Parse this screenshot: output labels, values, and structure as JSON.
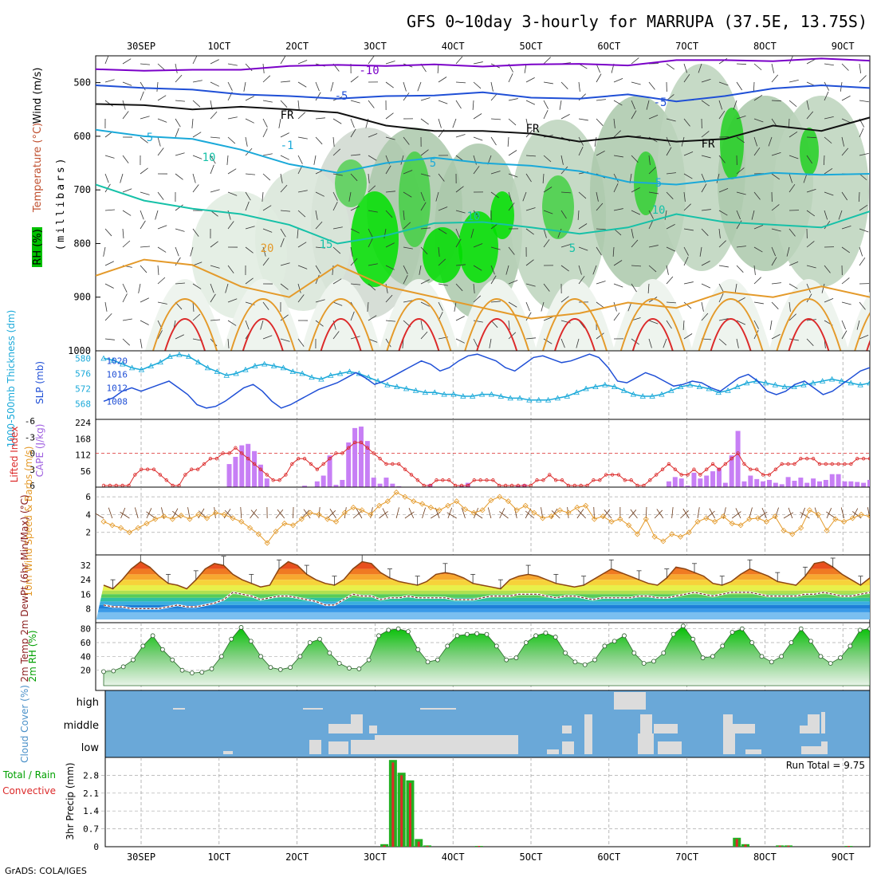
{
  "header": {
    "title": "GFS 0~10day 3-hourly for MARRUPA (37.5E, 13.75S)",
    "footer": "GrADS: COLA/IGES"
  },
  "dates": [
    "30SEP",
    "1OCT",
    "2OCT",
    "3OCT",
    "4OCT",
    "5OCT",
    "6OCT",
    "7OCT",
    "8OCT",
    "9OCT"
  ],
  "legend_colors": {
    "purple": "#7a00c8",
    "blue": "#1f4fd6",
    "cyan": "#1aa9d9",
    "teal": "#16c1a8",
    "orange": "#e49a2a",
    "red": "#dc2a2a",
    "magenta": "#d4007a",
    "green": "#00d000",
    "sky": "#6aa8d8"
  },
  "chart_data": [
    {
      "type": "heatmap",
      "panel": "upper-air",
      "ylabel": "(millibars)",
      "side_labels": [
        "Wind (m/s)",
        "Temperature (°C)",
        "RH (%)"
      ],
      "yticks": [
        500,
        600,
        700,
        800,
        900,
        1000
      ],
      "ylim": [
        1000,
        450
      ],
      "contour_labels": [
        "-10",
        "-5",
        "-5",
        "FR",
        "FR",
        "FR",
        "5",
        "-1",
        "10",
        "5",
        "5",
        "10",
        "10",
        "15",
        "20",
        "5"
      ],
      "isotherms": [
        {
          "name": "-10",
          "color": "purple",
          "y": [
            475,
            478,
            476,
            476,
            469,
            467,
            469,
            466,
            470,
            466,
            465,
            468,
            458,
            458,
            460,
            455,
            459
          ]
        },
        {
          "name": "-5",
          "color": "blue",
          "y": [
            505,
            510,
            513,
            522,
            525,
            530,
            525,
            524,
            518,
            528,
            530,
            522,
            535,
            525,
            511,
            505,
            510
          ]
        },
        {
          "name": "FR",
          "color": "#111111",
          "y": [
            540,
            542,
            550,
            545,
            550,
            556,
            580,
            590,
            590,
            595,
            610,
            600,
            610,
            605,
            580,
            590,
            565
          ]
        },
        {
          "name": "5",
          "color": "cyan",
          "y": [
            588,
            600,
            605,
            625,
            652,
            668,
            650,
            640,
            650,
            655,
            665,
            685,
            690,
            680,
            668,
            672,
            670
          ]
        },
        {
          "name": "10",
          "color": "teal",
          "y": [
            690,
            720,
            735,
            745,
            765,
            800,
            785,
            762,
            760,
            770,
            782,
            770,
            745,
            760,
            765,
            770,
            740
          ]
        },
        {
          "name": "20",
          "color": "orange",
          "y": [
            860,
            830,
            840,
            880,
            900,
            840,
            880,
            900,
            920,
            940,
            930,
            910,
            920,
            890,
            900,
            880,
            900
          ]
        }
      ]
    },
    {
      "type": "line",
      "panel": "thickness-slp",
      "ylabel_left": "1000-500mb Thickness (dm)",
      "ylabel_right": "SLP (mb)",
      "left_ticks": [
        568,
        572,
        576,
        580
      ],
      "right_ticks": [
        1008,
        1012,
        1016,
        1020
      ],
      "series": [
        {
          "name": "1000-500mb Thickness (dm)",
          "color": "cyan",
          "values": [
            580,
            579.5,
            578.5,
            577.5,
            577,
            578,
            579,
            580.5,
            581,
            580.5,
            579,
            577.5,
            576.5,
            575.5,
            576,
            577,
            578,
            578.5,
            578,
            577.5,
            576.5,
            576,
            575,
            574.5,
            575.5,
            576,
            576.5,
            576,
            575,
            574,
            573,
            572.5,
            572,
            571.5,
            571,
            571,
            570.5,
            570.5,
            570,
            570,
            570.5,
            570.5,
            570,
            569.5,
            569.5,
            569,
            569,
            569,
            569.5,
            570,
            571,
            572,
            572.5,
            573,
            572.5,
            571.5,
            570.5,
            570,
            570,
            570.5,
            571.5,
            572.5,
            573,
            572.5,
            572,
            571,
            571.5,
            572.5,
            573.5,
            574,
            573.5,
            573,
            572.5,
            572.5,
            573,
            573.5,
            574,
            574.5,
            574,
            573.5,
            573,
            573.5
          ]
        },
        {
          "name": "SLP (mb)",
          "color": "blue",
          "values": [
            1008,
            1009,
            1011,
            1012,
            1011,
            1012,
            1013,
            1014,
            1012,
            1010,
            1007,
            1006,
            1006.5,
            1008,
            1010,
            1012,
            1013,
            1011,
            1008,
            1006,
            1007,
            1008.5,
            1010,
            1011.5,
            1012.5,
            1013.5,
            1015,
            1016.5,
            1015,
            1013,
            1014,
            1015.5,
            1017,
            1018.5,
            1020,
            1019,
            1017,
            1018,
            1020,
            1021.5,
            1022,
            1021,
            1020,
            1018,
            1017,
            1019,
            1021,
            1021.5,
            1020.5,
            1019.5,
            1020,
            1021,
            1022,
            1021,
            1018,
            1014,
            1013.5,
            1015,
            1016.5,
            1015.5,
            1014,
            1012.5,
            1013,
            1014,
            1013.5,
            1012,
            1011,
            1013,
            1015,
            1016,
            1014,
            1011,
            1010,
            1011,
            1013,
            1014,
            1012,
            1010,
            1011,
            1013,
            1015,
            1017,
            1018
          ]
        }
      ]
    },
    {
      "type": "bar",
      "panel": "cape-li",
      "ylabel_left": "Lifted Index",
      "ylabel_right": "CAPE (J/kg)",
      "left_ticks": [
        -6,
        -3,
        0,
        3,
        6
      ],
      "right_ticks": [
        56,
        112,
        168,
        224
      ],
      "cape_color": "#c77ff5",
      "li_color": "red",
      "cape": [
        0,
        0,
        0,
        0,
        0,
        0,
        0,
        0,
        0,
        0,
        0,
        0,
        0,
        0,
        0,
        0,
        0,
        0,
        0,
        0,
        80,
        105,
        145,
        150,
        125,
        78,
        30,
        0,
        0,
        0,
        0,
        0,
        5,
        0,
        20,
        40,
        110,
        8,
        25,
        155,
        205,
        210,
        160,
        33,
        12,
        33,
        12,
        3,
        0,
        0,
        0,
        0,
        10,
        0,
        0,
        0,
        0,
        5,
        15,
        0,
        0,
        0,
        0,
        0,
        0,
        0,
        5,
        10,
        0,
        0,
        0,
        0,
        0,
        0,
        0,
        0,
        0,
        0,
        0,
        0,
        0,
        0,
        0,
        0,
        0,
        0,
        0,
        0,
        0,
        0,
        20,
        35,
        30,
        5,
        50,
        30,
        40,
        55,
        65,
        15,
        110,
        195,
        20,
        40,
        28,
        20,
        25,
        15,
        10,
        35,
        22,
        33,
        15,
        30,
        20,
        25,
        45,
        45,
        20,
        20,
        18,
        15,
        25
      ],
      "lifted_index": [
        6,
        6,
        6,
        6,
        6,
        4,
        3,
        3,
        3,
        4,
        5,
        6,
        6,
        4,
        3,
        3,
        2,
        1,
        1,
        0,
        0,
        -1,
        0,
        1,
        2,
        3,
        4,
        5,
        5,
        4,
        2,
        1,
        1,
        2,
        3,
        2,
        1,
        0,
        0,
        -1,
        -2,
        -2,
        -1,
        0,
        1,
        2,
        2,
        2,
        3,
        4,
        5,
        6,
        6,
        5,
        5,
        5,
        6,
        6,
        6,
        5,
        5,
        5,
        5,
        6,
        6,
        6,
        6,
        6,
        6,
        5,
        5,
        4,
        5,
        5,
        6,
        6,
        6,
        6,
        5,
        5,
        4,
        4,
        4,
        5,
        5,
        6,
        6,
        5,
        4,
        3,
        2,
        3,
        4,
        4,
        3,
        4,
        3,
        2,
        3,
        2,
        1,
        0,
        2,
        3,
        3,
        4,
        4,
        3,
        2,
        2,
        2,
        1,
        1,
        1,
        2,
        2,
        2,
        2,
        2,
        2,
        1,
        1,
        1
      ]
    },
    {
      "type": "line",
      "panel": "wind10m",
      "ylabel": "10m Wind Speed & Barbs (m/s)",
      "yticks": [
        2,
        4,
        6
      ],
      "series": [
        {
          "name": "Speed",
          "color": "orange",
          "values": [
            3.2,
            2.8,
            2.5,
            2.0,
            2.5,
            3.0,
            3.5,
            3.8,
            3.5,
            3.9,
            3.5,
            4.0,
            3.6,
            4.2,
            4.0,
            3.6,
            3.2,
            2.5,
            1.8,
            0.8,
            2.1,
            3.0,
            2.8,
            3.5,
            4.2,
            4.0,
            3.5,
            3.2,
            4.2,
            4.8,
            4.5,
            4.0,
            5.0,
            5.5,
            6.5,
            6.0,
            5.5,
            5.2,
            4.8,
            4.5,
            5.0,
            5.5,
            4.6,
            4.2,
            4.5,
            5.6,
            6.0,
            5.5,
            4.5,
            5.0,
            4.2,
            3.6,
            3.8,
            4.5,
            4.2,
            4.8,
            5.0,
            3.5,
            3.8,
            3.2,
            3.5,
            2.8,
            1.8,
            3.5,
            1.5,
            1.0,
            1.8,
            1.5,
            2.0,
            3.2,
            3.6,
            3.2,
            3.8,
            3.0,
            2.8,
            3.5,
            3.6,
            3.2,
            3.8,
            2.2,
            1.8,
            2.5,
            4.5,
            4.0,
            2.2,
            3.5,
            3.2,
            3.6,
            4.0,
            3.8
          ]
        }
      ]
    },
    {
      "type": "area",
      "panel": "temp2m",
      "ylabel": "2m Temp 2m DewPt (6hr Min/Max) (°C)",
      "yticks": [
        8,
        16,
        24,
        32
      ],
      "series": [
        {
          "name": "2m Temp",
          "color": "#8b4513",
          "values": [
            21,
            19,
            24,
            30,
            34,
            31,
            26,
            22,
            21,
            19,
            24,
            30,
            33,
            32,
            27,
            24,
            22,
            20,
            21,
            30,
            34,
            32,
            27,
            24,
            22,
            21,
            24,
            30,
            34,
            33,
            28,
            25,
            23,
            22,
            21,
            23,
            27,
            28,
            27,
            25,
            22,
            21,
            20,
            19,
            24,
            26,
            27,
            26,
            24,
            22,
            21,
            20,
            21,
            24,
            27,
            30,
            28,
            26,
            24,
            22,
            21,
            25,
            31,
            30,
            28,
            26,
            22,
            21,
            23,
            27,
            30,
            28,
            26,
            23,
            22,
            21,
            26,
            33,
            34,
            31,
            27,
            24,
            21,
            25
          ]
        },
        {
          "name": "2m DewPt",
          "color": "#7a2a2a",
          "values": [
            10,
            9,
            9,
            8,
            8,
            8,
            8,
            9,
            10,
            9,
            9,
            10,
            11,
            13,
            17,
            16,
            15,
            13,
            14,
            15,
            15,
            14,
            13,
            12,
            10,
            10,
            13,
            16,
            15,
            15,
            13,
            14,
            14,
            15,
            14,
            14,
            14,
            14,
            13,
            13,
            13,
            14,
            15,
            15,
            15,
            16,
            16,
            16,
            15,
            14,
            15,
            15,
            14,
            13,
            14,
            14,
            14,
            14,
            15,
            15,
            14,
            14,
            15,
            16,
            17,
            16,
            15,
            16,
            17,
            17,
            17,
            16,
            15,
            15,
            15,
            15,
            16,
            16,
            17,
            16,
            15,
            15,
            16,
            17
          ]
        }
      ]
    },
    {
      "type": "area",
      "panel": "rh2m",
      "ylabel": "2m RH (%)",
      "yticks": [
        20,
        40,
        60,
        80
      ],
      "series": [
        {
          "name": "2m RH",
          "color": "green",
          "values": [
            18,
            19,
            25,
            35,
            55,
            70,
            50,
            35,
            20,
            16,
            17,
            22,
            40,
            65,
            82,
            62,
            40,
            24,
            21,
            24,
            40,
            60,
            65,
            45,
            30,
            23,
            22,
            35,
            70,
            78,
            80,
            76,
            50,
            32,
            35,
            55,
            70,
            72,
            73,
            72,
            55,
            35,
            38,
            60,
            70,
            74,
            68,
            45,
            32,
            28,
            35,
            55,
            62,
            70,
            45,
            30,
            33,
            45,
            72,
            84,
            65,
            38,
            40,
            55,
            75,
            80,
            60,
            40,
            32,
            40,
            60,
            80,
            62,
            40,
            30,
            38,
            55,
            78,
            80
          ]
        }
      ]
    },
    {
      "type": "heatmap",
      "panel": "cloud-cover",
      "ylabel": "Cloud Cover (%)",
      "levels": [
        "high",
        "middle",
        "low"
      ]
    },
    {
      "type": "bar",
      "panel": "precip",
      "ylabel": "3hr Precip (mm)",
      "side_labels": [
        "Total / Rain",
        "Convective"
      ],
      "yticks": [
        0,
        0.7,
        1.4,
        2.1,
        2.8
      ],
      "annotation": "Run Total = 9.75",
      "total": [
        0,
        0,
        0,
        0,
        0,
        0,
        0,
        0,
        0,
        0,
        0,
        0,
        0,
        0,
        0,
        0,
        0,
        0,
        0,
        0,
        0,
        0,
        0,
        0,
        0,
        0,
        0,
        0,
        0,
        0,
        0,
        0,
        0.1,
        3.4,
        2.9,
        2.6,
        0.3,
        0.05,
        0,
        0,
        0,
        0,
        0,
        0.03,
        0,
        0,
        0,
        0,
        0,
        0,
        0,
        0,
        0,
        0,
        0,
        0,
        0,
        0,
        0,
        0,
        0,
        0,
        0,
        0,
        0,
        0,
        0,
        0,
        0,
        0,
        0,
        0,
        0,
        0.35,
        0.1,
        0,
        0,
        0,
        0.05,
        0.05,
        0,
        0,
        0,
        0,
        0,
        0,
        0.03,
        0,
        0
      ],
      "convective": [
        0,
        0,
        0,
        0,
        0,
        0,
        0,
        0,
        0,
        0,
        0,
        0,
        0,
        0,
        0,
        0,
        0,
        0,
        0,
        0,
        0,
        0,
        0,
        0,
        0,
        0,
        0,
        0,
        0,
        0,
        0,
        0,
        0.05,
        3.3,
        2.8,
        2.5,
        0.2,
        0.03,
        0,
        0,
        0,
        0,
        0,
        0.03,
        0,
        0,
        0,
        0,
        0,
        0,
        0,
        0,
        0,
        0,
        0,
        0,
        0,
        0,
        0,
        0,
        0,
        0,
        0,
        0,
        0,
        0,
        0,
        0,
        0,
        0,
        0,
        0,
        0,
        0.3,
        0.08,
        0,
        0,
        0,
        0.04,
        0.04,
        0,
        0,
        0,
        0,
        0,
        0,
        0.03,
        0,
        0
      ]
    }
  ]
}
